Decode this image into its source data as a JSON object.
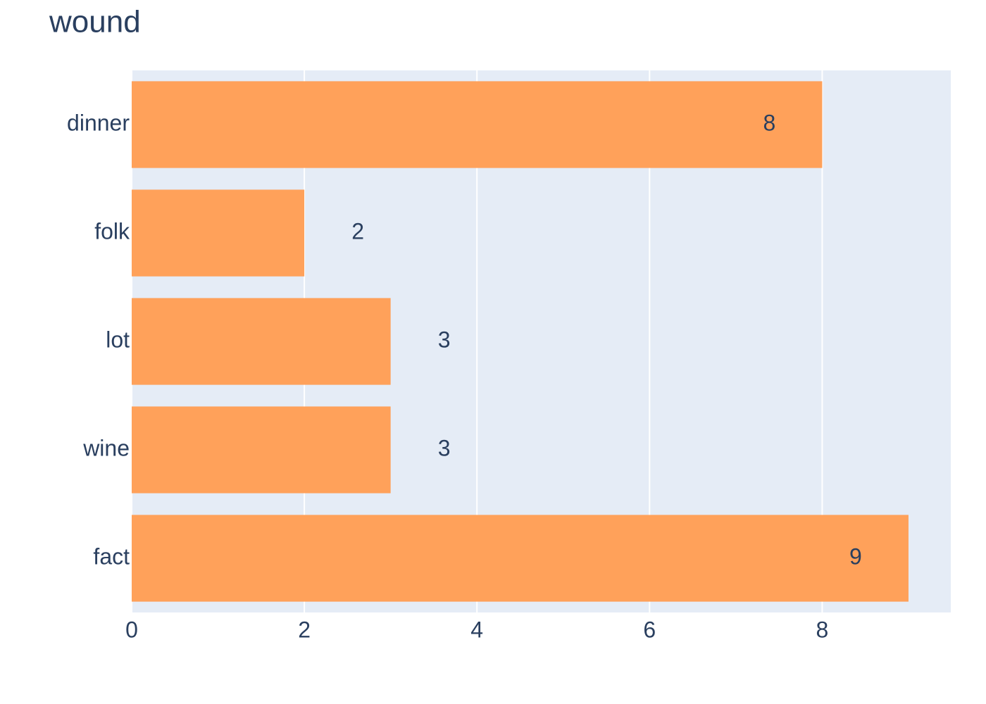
{
  "chart_data": {
    "type": "hbar",
    "title": "wound",
    "categories": [
      "dinner",
      "folk",
      "lot",
      "wine",
      "fact"
    ],
    "values": [
      8,
      2,
      3,
      3,
      9
    ],
    "color": "#ffa15a",
    "xlim": [
      0,
      9.49
    ],
    "xticks": [
      0,
      2,
      4,
      6,
      8
    ],
    "grid": true
  }
}
